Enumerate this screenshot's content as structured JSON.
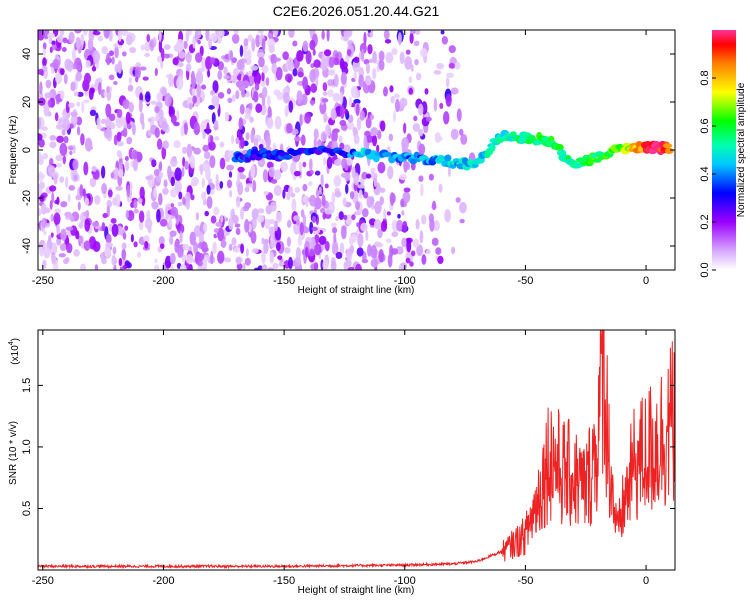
{
  "title": "C2E6.2026.051.20.44.G21",
  "chart_data": [
    {
      "type": "heatmap",
      "title": "C2E6.2026.051.20.44.G21",
      "xlabel": "Height of straight line (km)",
      "ylabel": "Frequency (Hz)",
      "xlim": [
        -252,
        12
      ],
      "ylim": [
        -50,
        50
      ],
      "xticks": [
        -250,
        -200,
        -150,
        -100,
        -50,
        0
      ],
      "yticks": [
        -40,
        -20,
        0,
        20,
        40
      ],
      "colorbar": {
        "label": "Normalized spectral amplitude",
        "range": [
          0,
          1
        ],
        "ticks": [
          0.0,
          0.2,
          0.4,
          0.6,
          0.8
        ],
        "colors": [
          "#ffffff",
          "#e6ccff",
          "#a020f0",
          "#6a00ff",
          "#0000ff",
          "#00bfff",
          "#00ffcc",
          "#00ff00",
          "#ffff00",
          "#ff8c00",
          "#ff0000",
          "#ff3399"
        ]
      },
      "ridge": [
        {
          "x": -170,
          "y": -3,
          "amp": 0.35
        },
        {
          "x": -160,
          "y": -2,
          "amp": 0.3
        },
        {
          "x": -150,
          "y": -2,
          "amp": 0.35
        },
        {
          "x": -130,
          "y": 0,
          "amp": 0.3
        },
        {
          "x": -115,
          "y": -2,
          "amp": 0.45
        },
        {
          "x": -100,
          "y": -3,
          "amp": 0.4
        },
        {
          "x": -90,
          "y": -4,
          "amp": 0.4
        },
        {
          "x": -80,
          "y": -5,
          "amp": 0.45
        },
        {
          "x": -70,
          "y": -6,
          "amp": 0.45
        },
        {
          "x": -60,
          "y": 6,
          "amp": 0.5
        },
        {
          "x": -50,
          "y": 5,
          "amp": 0.55
        },
        {
          "x": -40,
          "y": 4,
          "amp": 0.6
        },
        {
          "x": -30,
          "y": -6,
          "amp": 0.55
        },
        {
          "x": -20,
          "y": -3,
          "amp": 0.6
        },
        {
          "x": -10,
          "y": 1,
          "amp": 0.65
        },
        {
          "x": 0,
          "y": 1,
          "amp": 0.9
        },
        {
          "x": 5,
          "y": 1,
          "amp": 1.0
        },
        {
          "x": 10,
          "y": 1,
          "amp": 0.8
        }
      ]
    },
    {
      "type": "line",
      "xlabel": "Height of straight line (km)",
      "ylabel": "SNR (10 * v/v)",
      "yscale_note": "(x10",
      "yscale_exp": "4",
      "xlim": [
        -252,
        12
      ],
      "ylim": [
        0,
        1.95
      ],
      "xticks": [
        -250,
        -200,
        -150,
        -100,
        -50,
        0
      ],
      "yticks": [
        0.5,
        1.0,
        1.5
      ],
      "line_color": "#ee2222",
      "series": [
        {
          "x": [
            -252,
            -150,
            -100,
            -80,
            -70,
            -60,
            -50,
            -45,
            -40,
            -35,
            -30,
            -25,
            -20,
            -18,
            -15,
            -12,
            -10,
            -5,
            0,
            5,
            10,
            12
          ],
          "y": [
            0.03,
            0.03,
            0.04,
            0.05,
            0.07,
            0.15,
            0.3,
            0.6,
            1.0,
            0.85,
            0.8,
            0.7,
            1.1,
            1.9,
            0.9,
            0.3,
            0.5,
            0.9,
            1.0,
            1.1,
            1.25,
            1.3
          ]
        }
      ]
    }
  ]
}
